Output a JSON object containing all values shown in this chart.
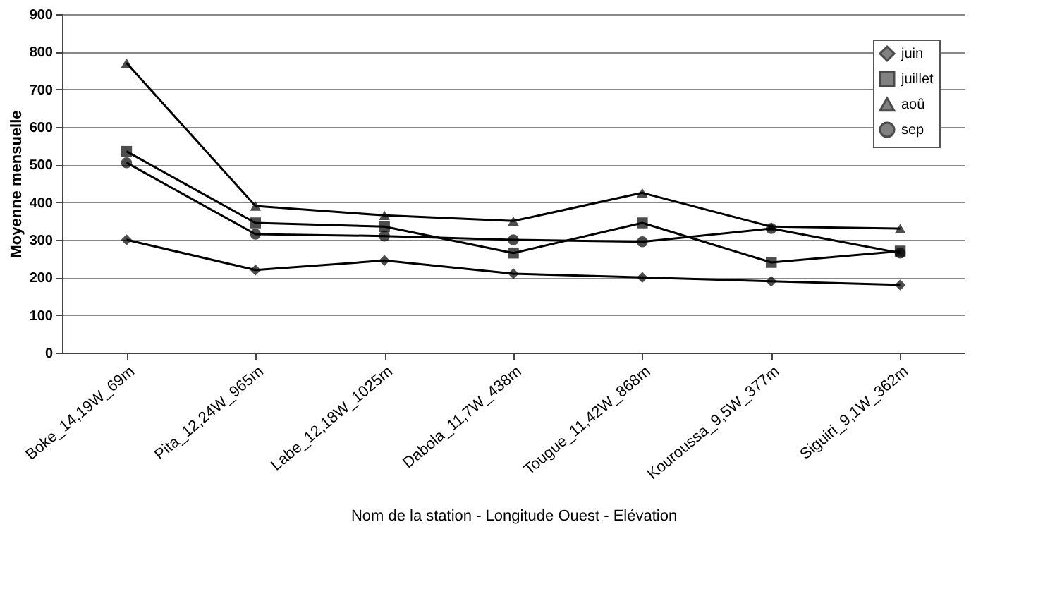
{
  "chart_data": {
    "type": "line",
    "xlabel": "Nom de la station - Longitude Ouest - Elévation",
    "ylabel": "Moyenne mensuelle",
    "categories": [
      "Boke_14,19W_69m",
      "Pita_12,24W_965m",
      "Labe_12,18W_1025m",
      "Dabola_11,7W_438m",
      "Tougue_11,42W_868m",
      "Kouroussa_9,5W_377m",
      "Siguiri_9,1W_362m"
    ],
    "series": [
      {
        "name": "juin",
        "color": "#000000",
        "marker": "diamond",
        "values": [
          300,
          220,
          245,
          210,
          200,
          190,
          180
        ]
      },
      {
        "name": "juillet",
        "color": "#000000",
        "marker": "square",
        "values": [
          535,
          345,
          335,
          265,
          345,
          240,
          270
        ]
      },
      {
        "name": "aoû",
        "color": "#000000",
        "marker": "triangle",
        "values": [
          770,
          390,
          365,
          350,
          425,
          335,
          330
        ]
      },
      {
        "name": "sep",
        "color": "#000000",
        "marker": "circle",
        "values": [
          505,
          315,
          310,
          300,
          295,
          330,
          265
        ]
      }
    ],
    "ylim": [
      0,
      900
    ],
    "yticks": [
      0,
      100,
      200,
      300,
      400,
      500,
      600,
      700,
      800,
      900
    ],
    "grid": "y",
    "legend": "top right",
    "line_style": "solid"
  }
}
